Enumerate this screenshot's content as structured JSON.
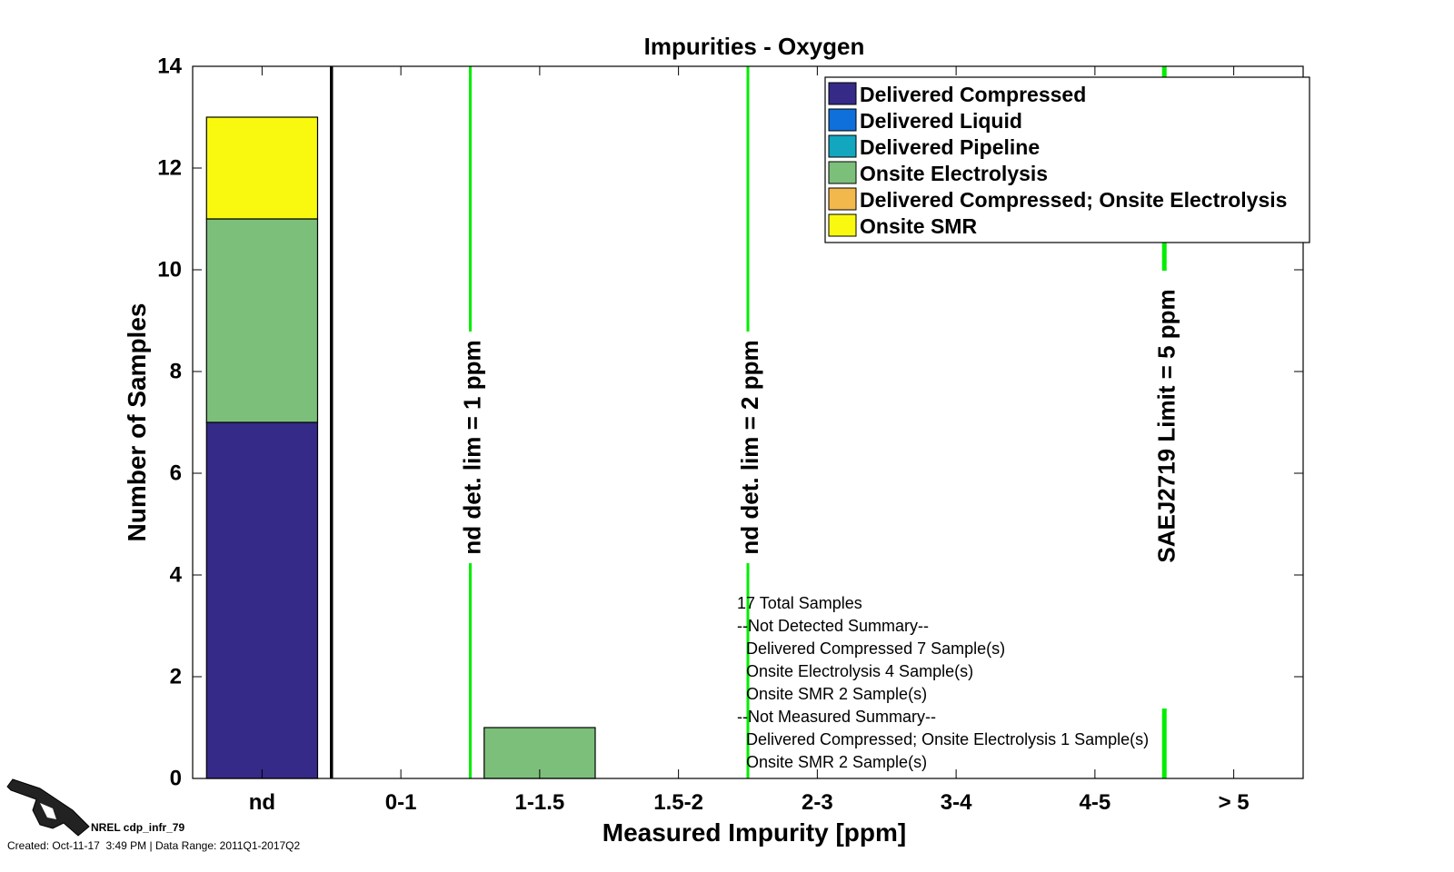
{
  "chart_data": {
    "type": "bar",
    "stacked": true,
    "title": "Impurities - Oxygen",
    "xlabel": "Measured Impurity [ppm]",
    "ylabel": "Number of Samples",
    "ylim": [
      0,
      14
    ],
    "yticks": [
      "0",
      "2",
      "4",
      "6",
      "8",
      "10",
      "12",
      "14"
    ],
    "categories": [
      "nd",
      "0-1",
      "1-1.5",
      "1.5-2",
      "2-3",
      "3-4",
      "4-5",
      "> 5"
    ],
    "series": [
      {
        "name": "Delivered Compressed",
        "color": "#352a87",
        "values": [
          7,
          0,
          0,
          0,
          0,
          0,
          0,
          0
        ]
      },
      {
        "name": "Delivered Liquid",
        "color": "#0f6fdb",
        "values": [
          0,
          0,
          0,
          0,
          0,
          0,
          0,
          0
        ]
      },
      {
        "name": "Delivered Pipeline",
        "color": "#13a6bf",
        "values": [
          0,
          0,
          0,
          0,
          0,
          0,
          0,
          0
        ]
      },
      {
        "name": "Onsite Electrolysis",
        "color": "#7cbf7b",
        "values": [
          4,
          0,
          1,
          0,
          0,
          0,
          0,
          0
        ]
      },
      {
        "name": "Delivered Compressed; Onsite Electrolysis",
        "color": "#f2b84b",
        "values": [
          0,
          0,
          0,
          0,
          0,
          0,
          0,
          0
        ]
      },
      {
        "name": "Onsite SMR",
        "color": "#f9f90f",
        "values": [
          2,
          0,
          0,
          0,
          0,
          0,
          0,
          0
        ]
      }
    ],
    "reference_lines": [
      {
        "label": "nd det. lim = 1 ppm",
        "color": "#00ee00",
        "between": [
          "0-1",
          "1-1.5"
        ]
      },
      {
        "label": "nd det. lim = 2 ppm",
        "color": "#00ee00",
        "between": [
          "1.5-2",
          "2-3"
        ]
      },
      {
        "label": "SAEJ2719 Limit = 5 ppm",
        "color": "#00ee00",
        "between": [
          "4-5",
          "> 5"
        ]
      }
    ],
    "separator_after": "nd",
    "legend_position": "top-right",
    "grid": false,
    "annotation_lines": [
      "17 Total Samples",
      "--Not Detected Summary--",
      "  Delivered Compressed 7 Sample(s)",
      "  Onsite Electrolysis 4 Sample(s)",
      "  Onsite SMR 2 Sample(s)",
      "--Not Measured Summary--",
      "  Delivered Compressed; Onsite Electrolysis 1 Sample(s)",
      "  Onsite SMR 2 Sample(s)"
    ]
  },
  "footer": {
    "id_label": "NREL cdp_infr_79",
    "created_label": "Created: Oct-11-17  3:49 PM | Data Range: 2011Q1-2017Q2"
  }
}
